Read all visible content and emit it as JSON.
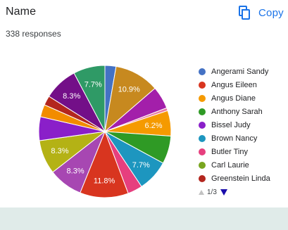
{
  "question": {
    "title": "Name",
    "responses": "338 responses"
  },
  "copy_button": {
    "label": "Copy",
    "icon": "copy-icon",
    "color": "#1a73e8"
  },
  "chart_data": {
    "type": "pie",
    "slices": [
      {
        "name": "Angerami Sandy",
        "value": 2.7,
        "color": "#4472c4",
        "label": ""
      },
      {
        "name": "",
        "value": 10.9,
        "color": "#c7891f",
        "label": "10.9%"
      },
      {
        "name": "",
        "value": 5.5,
        "color": "#a31faa",
        "label": ""
      },
      {
        "name": "",
        "value": 0.7,
        "color": "#e97ca0",
        "label": ""
      },
      {
        "name": "Angus Diane",
        "value": 6.2,
        "color": "#f59a00",
        "label": "6.2%"
      },
      {
        "name": "Anthony Sarah",
        "value": 6.8,
        "color": "#2f9a25",
        "label": ""
      },
      {
        "name": "Brown Nancy",
        "value": 7.7,
        "color": "#1d96bf",
        "label": "7.7%"
      },
      {
        "name": "Butler Tiny",
        "value": 3.6,
        "color": "#e63f7e",
        "label": ""
      },
      {
        "name": "Angus Eileen",
        "value": 11.8,
        "color": "#d8351f",
        "label": "11.8%"
      },
      {
        "name": "",
        "value": 8.3,
        "color": "#a747b2",
        "label": "8.3%"
      },
      {
        "name": "Carl Laurie",
        "value": 8.3,
        "color": "#b4b215",
        "label": "8.3%"
      },
      {
        "name": "Bissel Judy",
        "value": 5.8,
        "color": "#8a1fc9",
        "label": ""
      },
      {
        "name": "",
        "value": 3.0,
        "color": "#f28c00",
        "label": ""
      },
      {
        "name": "Greenstein Linda",
        "value": 2.3,
        "color": "#b3261e",
        "label": ""
      },
      {
        "name": "",
        "value": 8.3,
        "color": "#730f88",
        "label": "8.3%"
      },
      {
        "name": "",
        "value": 7.7,
        "color": "#2f9a66",
        "label": "7.7%"
      }
    ]
  },
  "legend": {
    "items": [
      {
        "label": "Angerami Sandy",
        "color": "#4472c4"
      },
      {
        "label": "Angus Eileen",
        "color": "#d8351f"
      },
      {
        "label": "Angus Diane",
        "color": "#f59a00"
      },
      {
        "label": "Anthony Sarah",
        "color": "#2f9a25"
      },
      {
        "label": "Bissel Judy",
        "color": "#8a1fc9"
      },
      {
        "label": "Brown Nancy",
        "color": "#1d96bf"
      },
      {
        "label": "Butler Tiny",
        "color": "#e63f7e"
      },
      {
        "label": "Carl Laurie",
        "color": "#78a51f"
      },
      {
        "label": "Greenstein Linda",
        "color": "#b3261e"
      }
    ]
  },
  "pager": {
    "text": "1/3"
  }
}
